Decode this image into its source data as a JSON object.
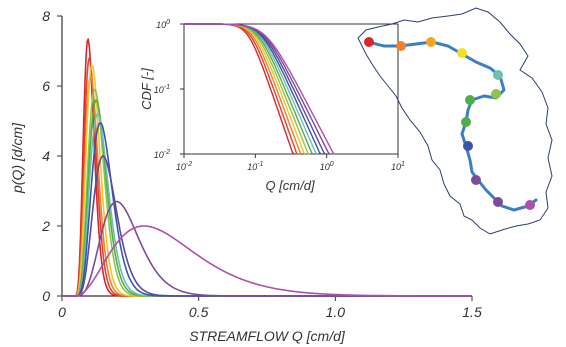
{
  "chart_data": [
    {
      "type": "line",
      "title": "",
      "xlabel": "STREAMFLOW Q [cm/d]",
      "ylabel": "p(Q) [d/cm]",
      "xlim": [
        0,
        1.5
      ],
      "ylim": [
        0,
        8
      ],
      "x_ticks": [
        "0",
        "0.5",
        "1.0",
        "1.5"
      ],
      "y_ticks": [
        "0",
        "2",
        "4",
        "6",
        "8"
      ],
      "grid": false,
      "curve_shape": "gamma-like pdf",
      "series": [
        {
          "color": "#d9262a",
          "peak_x": 0.095,
          "peak_y": 7.35
        },
        {
          "color": "#e0432f",
          "peak_x": 0.1,
          "peak_y": 6.8
        },
        {
          "color": "#f08030",
          "peak_x": 0.105,
          "peak_y": 6.3
        },
        {
          "color": "#f3c523",
          "peak_x": 0.11,
          "peak_y": 6.6
        },
        {
          "color": "#8ec44a",
          "peak_x": 0.12,
          "peak_y": 5.9
        },
        {
          "color": "#4fae4a",
          "peak_x": 0.125,
          "peak_y": 5.6
        },
        {
          "color": "#6fbfae",
          "peak_x": 0.13,
          "peak_y": 5.2
        },
        {
          "color": "#3a55a5",
          "peak_x": 0.14,
          "peak_y": 4.95
        },
        {
          "color": "#5a4a9e",
          "peak_x": 0.15,
          "peak_y": 4.0
        },
        {
          "color": "#7c4c9a",
          "peak_x": 0.2,
          "peak_y": 2.7
        },
        {
          "color": "#b04fa8",
          "peak_x": 0.3,
          "peak_y": 2.0
        }
      ]
    },
    {
      "type": "line",
      "title": "",
      "xlabel": "Q [cm/d]",
      "ylabel": "CDF [-]",
      "xscale": "log",
      "yscale": "log",
      "xlim": [
        0.01,
        10
      ],
      "ylim": [
        0.01,
        1
      ],
      "x_ticks": [
        "10-2",
        "10-1",
        "100",
        "101"
      ],
      "y_ticks": [
        "10-2",
        "10-1",
        "100"
      ],
      "grid": false,
      "series_colors": [
        "#d9262a",
        "#e0432f",
        "#f08030",
        "#f3c523",
        "#8ec44a",
        "#4fae4a",
        "#6fbfae",
        "#3a55a5",
        "#5a4a9e",
        "#7c4c9a",
        "#b04fa8"
      ]
    }
  ],
  "map": {
    "description_icon": "basin-map",
    "outline_color": "#2c3e6b",
    "river_color": "#3a7fc1",
    "gauge_colors": [
      "#d9262a",
      "#f08030",
      "#f3a623",
      "#f3e023",
      "#6fbfae",
      "#8ec44a",
      "#4fae4a",
      "#4fae4a",
      "#3a55a5",
      "#7c4c9a",
      "#7c4c9a",
      "#b04fa8"
    ]
  }
}
